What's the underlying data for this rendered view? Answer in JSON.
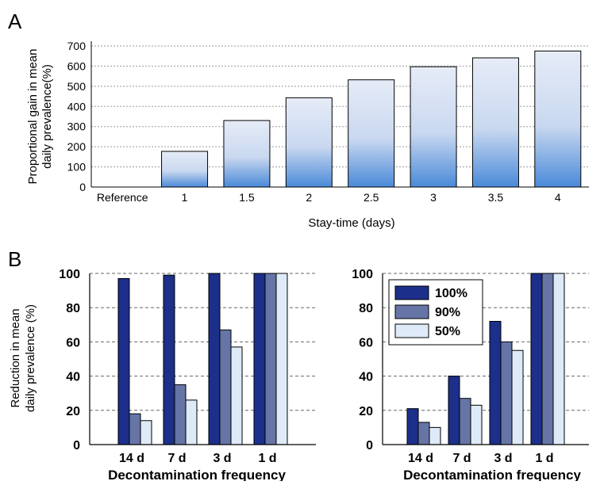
{
  "panels": {
    "a_letter": "A",
    "b_letter": "B"
  },
  "colors": {
    "a_bar_top": "#e6ecf7",
    "a_bar_bottom": "#4a8ad8",
    "b_100": "#1c2f8a",
    "b_90": "#6675a6",
    "b_50": "#deeaf8"
  },
  "chart_data": [
    {
      "id": "A",
      "type": "bar",
      "categories": [
        "Reference",
        "1",
        "1.5",
        "2",
        "2.5",
        "3",
        "3.5",
        "4"
      ],
      "values": [
        0,
        177,
        330,
        443,
        532,
        597,
        641,
        675
      ],
      "xlabel": "Stay-time (days)",
      "ylabel": "Proportional gain in mean daily prevalence(%)",
      "ylabel_lines": [
        "Proportional gain in mean",
        "daily prevalence(%)"
      ],
      "ylim": [
        0,
        700
      ],
      "yticks": [
        0,
        100,
        200,
        300,
        400,
        500,
        600,
        700
      ],
      "grid": true
    },
    {
      "id": "B-left",
      "type": "bar",
      "categories": [
        "14 d",
        "7 d",
        "3 d",
        "1 d"
      ],
      "series": [
        {
          "name": "100%",
          "values": [
            97,
            99,
            100,
            100
          ]
        },
        {
          "name": "90%",
          "values": [
            18,
            35,
            67,
            100
          ]
        },
        {
          "name": "50%",
          "values": [
            14,
            26,
            57,
            100
          ]
        }
      ],
      "xlabel": "Decontamination frequency",
      "ylabel": "Reduction in mean daily prevalence (%)",
      "ylabel_lines": [
        "Reduction in mean",
        "daily prevalence (%)"
      ],
      "ylim": [
        0,
        100
      ],
      "yticks": [
        0,
        20,
        40,
        60,
        80,
        100
      ],
      "grid": true
    },
    {
      "id": "B-right",
      "type": "bar",
      "categories": [
        "14 d",
        "7 d",
        "3 d",
        "1 d"
      ],
      "series": [
        {
          "name": "100%",
          "values": [
            21,
            40,
            72,
            100
          ]
        },
        {
          "name": "90%",
          "values": [
            13,
            27,
            60,
            100
          ]
        },
        {
          "name": "50%",
          "values": [
            10,
            23,
            55,
            100
          ]
        }
      ],
      "xlabel": "Decontamination frequency",
      "ylim": [
        0,
        100
      ],
      "yticks": [
        0,
        20,
        40,
        60,
        80,
        100
      ],
      "grid": true,
      "legend": "top-left"
    }
  ]
}
